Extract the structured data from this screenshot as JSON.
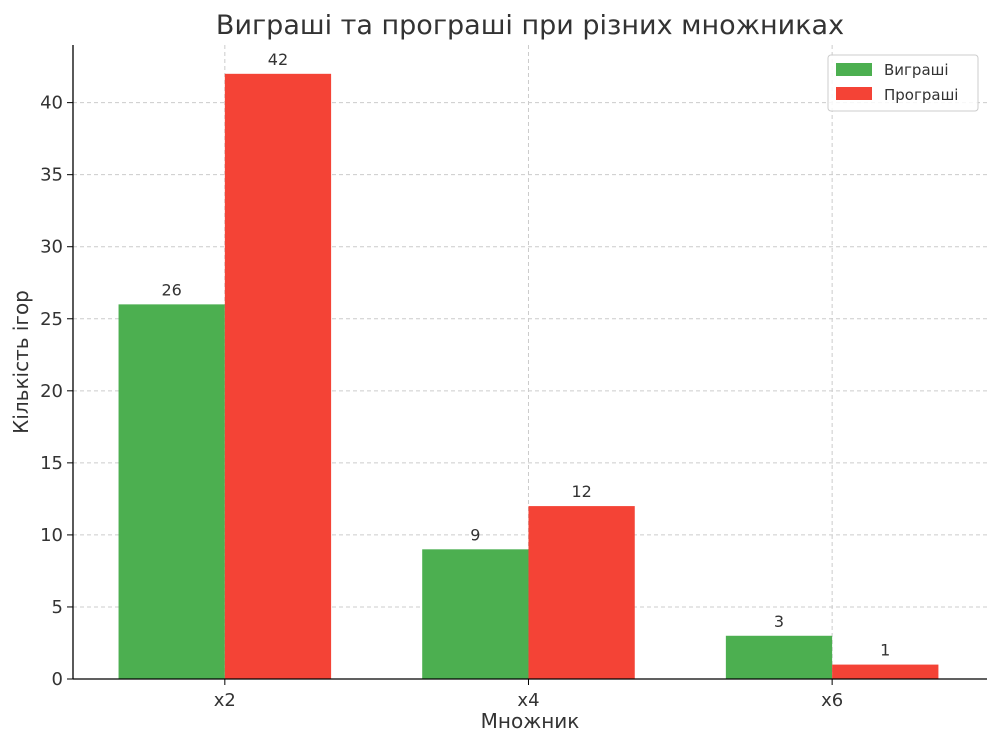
{
  "colors": {
    "wins": "#4caf50",
    "losses": "#f44336"
  },
  "chart_data": {
    "type": "bar",
    "title": "Виграші та програші при різних множниках",
    "xlabel": "Множник",
    "ylabel": "Кількість ігор",
    "categories": [
      "x2",
      "x4",
      "x6"
    ],
    "series": [
      {
        "name": "Виграші",
        "values": [
          26,
          9,
          3
        ],
        "color": "#4caf50"
      },
      {
        "name": "Програші",
        "values": [
          42,
          12,
          1
        ],
        "color": "#f44336"
      }
    ],
    "ylim": [
      0,
      44
    ],
    "yticks": [
      0,
      5,
      10,
      15,
      20,
      25,
      30,
      35,
      40
    ],
    "grid": true,
    "legend_position": "top-right",
    "show_value_labels": true
  }
}
